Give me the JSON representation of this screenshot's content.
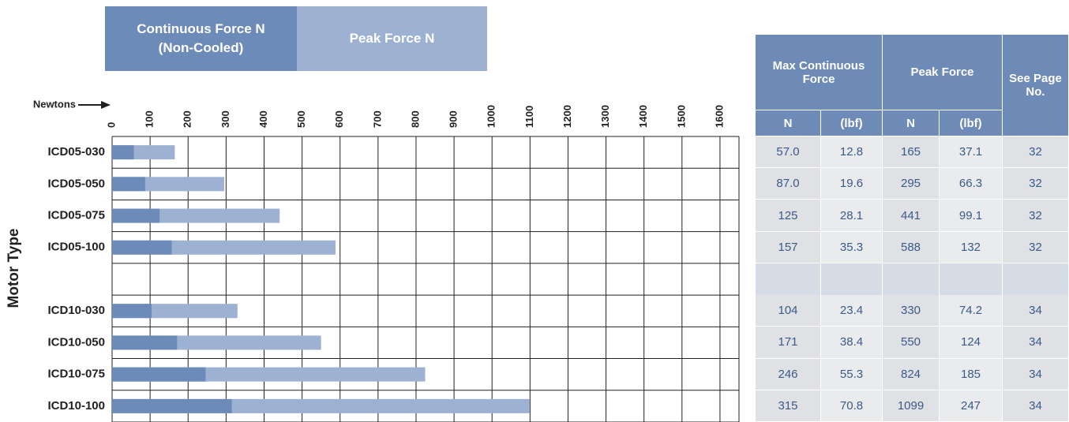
{
  "chart_data": {
    "type": "bar",
    "orientation": "horizontal",
    "x_label": "Newtons",
    "y_label": "Motor Type",
    "categories": [
      "ICD05-030",
      "ICD05-050",
      "ICD05-075",
      "ICD05-100",
      null,
      "ICD10-030",
      "ICD10-050",
      "ICD10-075",
      "ICD10-100"
    ],
    "series": [
      {
        "name": "Continuous Force N (Non-Cooled)",
        "color": "#6d8bb8",
        "values": [
          57,
          87,
          125,
          157,
          null,
          104,
          171,
          246,
          315
        ]
      },
      {
        "name": "Peak Force N",
        "color": "#9db1d2",
        "values": [
          165,
          295,
          441,
          588,
          null,
          330,
          550,
          824,
          1099
        ]
      }
    ],
    "xlim": [
      0,
      1650
    ],
    "xticks": [
      0,
      100,
      200,
      300,
      400,
      500,
      600,
      700,
      800,
      900,
      1000,
      1100,
      1200,
      1300,
      1400,
      1500,
      1600
    ],
    "grid": true
  },
  "table": {
    "groups": [
      "Max Continuous Force",
      "Peak Force",
      "See Page No."
    ],
    "units": [
      "N",
      "(lbf)",
      "N",
      "(lbf)"
    ],
    "rows": [
      [
        "57.0",
        "12.8",
        "165",
        "37.1",
        "32"
      ],
      [
        "87.0",
        "19.6",
        "295",
        "66.3",
        "32"
      ],
      [
        "125",
        "28.1",
        "441",
        "99.1",
        "32"
      ],
      [
        "157",
        "35.3",
        "588",
        "132",
        "32"
      ],
      [
        "104",
        "23.4",
        "330",
        "74.2",
        "34"
      ],
      [
        "171",
        "38.4",
        "550",
        "124",
        "34"
      ],
      [
        "246",
        "55.3",
        "824",
        "185",
        "34"
      ],
      [
        "315",
        "70.8",
        "1099",
        "247",
        "34"
      ]
    ]
  }
}
